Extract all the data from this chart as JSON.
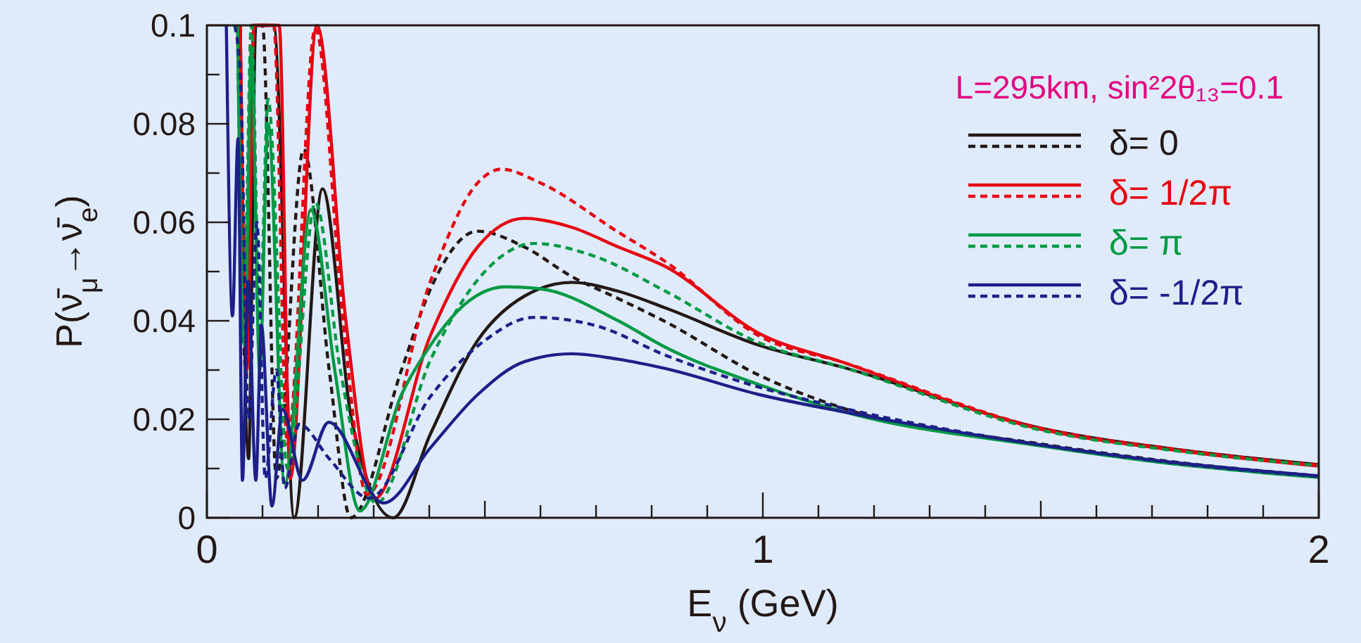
{
  "chart_data": {
    "type": "line",
    "xlabel": "E$_{ν}$ (GeV)",
    "ylabel": "P(ν̄$_{μ}$→ν̄$_{e}$)",
    "annotations": [
      "L=295km, sin²2θ₁₃=0.1"
    ],
    "xlim": [
      0,
      2
    ],
    "ylim": [
      0,
      0.1
    ],
    "xticks": [
      0,
      {
        "value": 0.1,
        "label": null
      },
      {
        "value": 0.2,
        "label": null
      },
      {
        "value": 0.3,
        "label": null
      },
      {
        "value": 0.4,
        "label": null
      },
      {
        "value": 0.5,
        "label": null
      },
      {
        "value": 0.6,
        "label": null
      },
      {
        "value": 0.7,
        "label": null
      },
      {
        "value": 0.8,
        "label": null
      },
      {
        "value": 0.9,
        "label": null
      },
      1,
      {
        "value": 1.1,
        "label": null
      },
      {
        "value": 1.2,
        "label": null
      },
      {
        "value": 1.3,
        "label": null
      },
      {
        "value": 1.4,
        "label": null
      },
      {
        "value": 1.5,
        "label": null
      },
      {
        "value": 1.6,
        "label": null
      },
      {
        "value": 1.7,
        "label": null
      },
      {
        "value": 1.8,
        "label": null
      },
      {
        "value": 1.9,
        "label": null
      },
      2
    ],
    "yticks": [
      0,
      {
        "value": 0.01,
        "label": null
      },
      0.02,
      {
        "value": 0.03,
        "label": null
      },
      0.04,
      {
        "value": 0.05,
        "label": null
      },
      0.06,
      {
        "value": 0.07,
        "label": null
      },
      0.08,
      {
        "value": 0.09,
        "label": null
      },
      0.1
    ],
    "grid": false,
    "legend": "top right",
    "marker": "none",
    "series": [
      {
        "name": "δ= 0",
        "color": "#231815",
        "line_style": "solid",
        "x": [
          0.06,
          0.075,
          0.088,
          0.12,
          0.157,
          0.208,
          0.26,
          0.335,
          0.402,
          0.487,
          0.571,
          0.656,
          0.74,
          0.825,
          0.994,
          1.146,
          1.5,
          1.75,
          2
        ],
        "values": [
          0.1,
          0.012,
          0.1,
          0.1,
          0,
          0.0668,
          0.02,
          0,
          0.017,
          0.036,
          0.045,
          0.0478,
          0.046,
          0.0426,
          0.035,
          0.0305,
          0.0182,
          0.0138,
          0.0108
        ]
      },
      {
        "color": "#231815",
        "line_style": "dashed",
        "x": [
          0.055,
          0.07,
          0.085,
          0.1,
          0.125,
          0.174,
          0.22,
          0.259,
          0.35,
          0.402,
          0.487,
          0.571,
          0.656,
          0.74,
          0.825,
          0.994,
          1.146,
          1.5,
          1.75,
          2
        ],
        "values": [
          0.1,
          0.03,
          0.1,
          0.1,
          0.008,
          0.0748,
          0.03,
          0,
          0.03,
          0.0464,
          0.0582,
          0.055,
          0.049,
          0.0445,
          0.0398,
          0.0289,
          0.0222,
          0.015,
          0.0112,
          0.0085
        ]
      },
      {
        "name": "δ= 1/2π",
        "color": "#e60012",
        "line_style": "solid",
        "x": [
          0.06,
          0.072,
          0.085,
          0.13,
          0.15,
          0.198,
          0.25,
          0.301,
          0.402,
          0.487,
          0.571,
          0.656,
          0.74,
          0.825,
          0.994,
          1.146,
          1.5,
          1.75,
          2
        ],
        "values": [
          0.1,
          0.03,
          0.1,
          0.1,
          0.008,
          0.1,
          0.04,
          0.0038,
          0.037,
          0.055,
          0.0608,
          0.059,
          0.055,
          0.051,
          0.0374,
          0.0315,
          0.018,
          0.0136,
          0.0105
        ]
      },
      {
        "color": "#e60012",
        "line_style": "dashed",
        "x": [
          0.06,
          0.07,
          0.08,
          0.12,
          0.145,
          0.195,
          0.245,
          0.288,
          0.402,
          0.487,
          0.529,
          0.6,
          0.74,
          0.825,
          0.994,
          1.146,
          1.5,
          1.75,
          2
        ],
        "values": [
          0.1,
          0.05,
          0.1,
          0.1,
          0.015,
          0.0994,
          0.04,
          0.0047,
          0.048,
          0.068,
          0.0708,
          0.068,
          0.058,
          0.052,
          0.0369,
          0.0315,
          0.0182,
          0.0138,
          0.0107
        ]
      },
      {
        "name": "δ= π",
        "color": "#009944",
        "line_style": "solid",
        "x": [
          0.055,
          0.068,
          0.08,
          0.095,
          0.11,
          0.14,
          0.187,
          0.23,
          0.275,
          0.35,
          0.402,
          0.471,
          0.537,
          0.6,
          0.74,
          0.825,
          0.994,
          1.146,
          1.5,
          1.75,
          2
        ],
        "values": [
          0.1,
          0.035,
          0.095,
          0.03,
          0.08,
          0.007,
          0.0625,
          0.03,
          0.0014,
          0.025,
          0.035,
          0.044,
          0.0469,
          0.0465,
          0.04,
          0.0346,
          0.027,
          0.0215,
          0.0146,
          0.0108,
          0.0082
        ]
      },
      {
        "color": "#009944",
        "line_style": "dashed",
        "x": [
          0.055,
          0.068,
          0.08,
          0.095,
          0.11,
          0.145,
          0.195,
          0.24,
          0.305,
          0.402,
          0.5,
          0.588,
          0.7,
          0.825,
          0.994,
          1.146,
          1.5,
          1.75,
          2
        ],
        "values": [
          0.1,
          0.05,
          0.1,
          0.04,
          0.085,
          0.01,
          0.064,
          0.03,
          0.003,
          0.032,
          0.05,
          0.0557,
          0.053,
          0.046,
          0.0355,
          0.0305,
          0.0178,
          0.0135,
          0.0106
        ]
      },
      {
        "name": "δ= -1/2π",
        "color": "#1d2088",
        "line_style": "solid",
        "x": [
          0.035,
          0.046,
          0.056,
          0.064,
          0.074,
          0.088,
          0.098,
          0.117,
          0.136,
          0.172,
          0.219,
          0.318,
          0.402,
          0.487,
          0.571,
          0.656,
          0.74,
          0.825,
          0.994,
          1.146,
          1.5,
          1.75,
          2
        ],
        "values": [
          0.1,
          0.041,
          0.077,
          0.0076,
          0.048,
          0.0076,
          0.039,
          0.0024,
          0.022,
          0.0076,
          0.0194,
          0.003,
          0.0142,
          0.025,
          0.0317,
          0.0333,
          0.0322,
          0.0303,
          0.025,
          0.0215,
          0.0148,
          0.0111,
          0.0085
        ]
      },
      {
        "color": "#1d2088",
        "line_style": "dashed",
        "x": [
          0.05,
          0.06,
          0.075,
          0.09,
          0.105,
          0.125,
          0.14,
          0.166,
          0.22,
          0.292,
          0.402,
          0.5,
          0.588,
          0.7,
          0.825,
          0.994,
          1.146,
          1.5,
          1.75,
          2
        ],
        "values": [
          0.1,
          0.09,
          0.02,
          0.06,
          0.008,
          0.03,
          0.006,
          0.019,
          0.012,
          0.004,
          0.0246,
          0.036,
          0.0407,
          0.039,
          0.033,
          0.0265,
          0.0222,
          0.0148,
          0.011,
          0.0084
        ]
      }
    ]
  }
}
